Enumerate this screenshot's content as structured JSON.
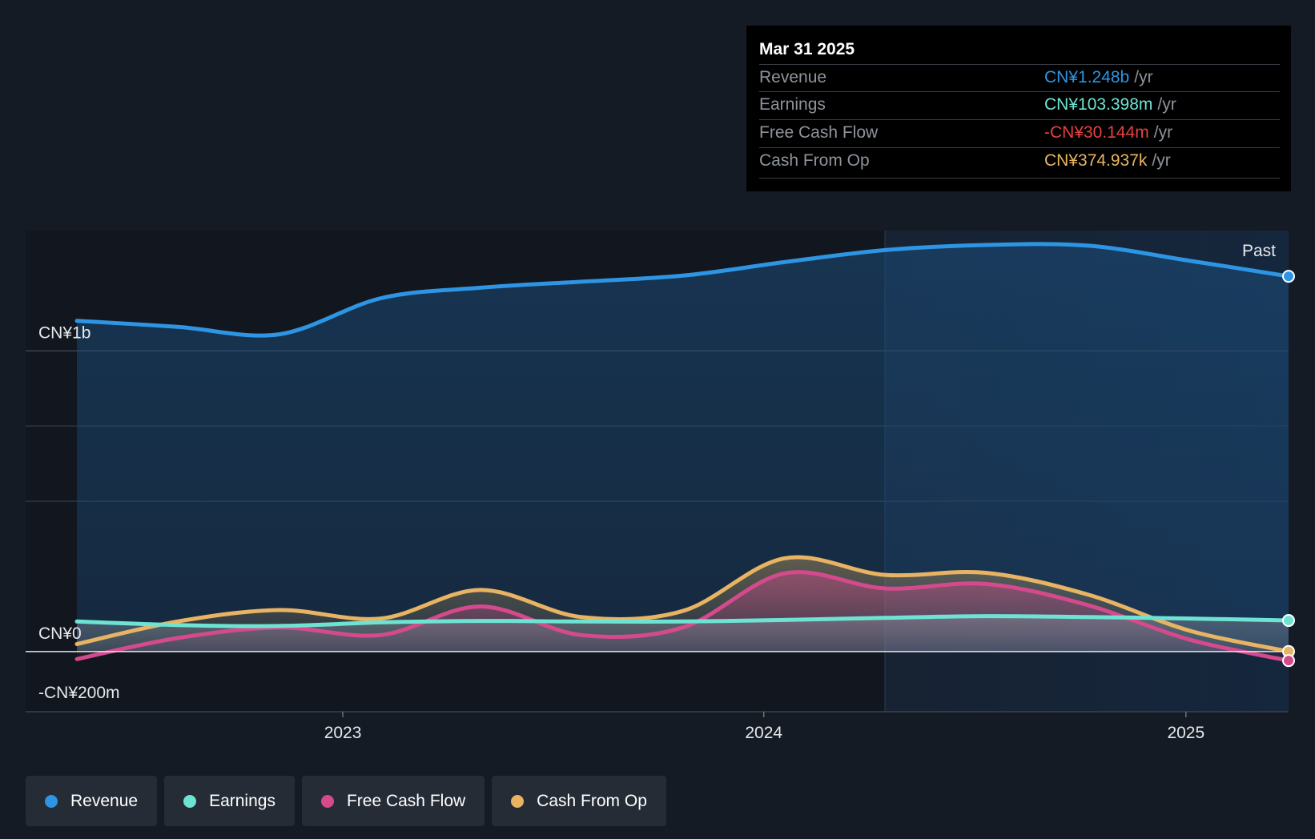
{
  "chart_data": {
    "type": "area",
    "y_axis": {
      "ticks": [
        {
          "value": 1000,
          "label": "CN¥1b"
        },
        {
          "value": 0,
          "label": "CN¥0"
        },
        {
          "value": -200,
          "label": "-CN¥200m"
        }
      ],
      "ylim": [
        -200,
        1400
      ],
      "unit": "CN¥ million"
    },
    "x_axis": {
      "xlim": [
        "2022-04-01",
        "2025-03-31"
      ],
      "ticks": [
        {
          "value": "2023-01-01",
          "label": "2023"
        },
        {
          "value": "2024-01-01",
          "label": "2024"
        },
        {
          "value": "2025-01-01",
          "label": "2025"
        }
      ]
    },
    "past_label": "Past",
    "past_start": "2024-03-31",
    "x": [
      "2022-03-31",
      "2022-06-30",
      "2022-09-30",
      "2022-12-31",
      "2023-03-31",
      "2023-06-30",
      "2023-09-30",
      "2023-12-31",
      "2024-03-31",
      "2024-06-30",
      "2024-09-30",
      "2024-12-31",
      "2025-03-31"
    ],
    "series": [
      {
        "name": "Revenue",
        "color": "#2d95e3",
        "values": [
          1100,
          1080,
          1055,
          1175,
          1210,
          1230,
          1250,
          1295,
          1335,
          1352,
          1350,
          1300,
          1248
        ]
      },
      {
        "name": "Earnings",
        "color": "#6ee3d3",
        "values": [
          100,
          88,
          85,
          97,
          102,
          100,
          100,
          105,
          112,
          118,
          115,
          110,
          103.4
        ]
      },
      {
        "name": "Free Cash Flow",
        "color": "#d44a8d",
        "values": [
          -25,
          45,
          80,
          55,
          150,
          55,
          80,
          260,
          210,
          225,
          155,
          40,
          -30.1
        ]
      },
      {
        "name": "Cash From Op",
        "color": "#e8b463",
        "values": [
          25,
          100,
          138,
          110,
          205,
          115,
          135,
          310,
          255,
          262,
          190,
          70,
          0.4
        ]
      }
    ]
  },
  "tooltip": {
    "date": "Mar 31 2025",
    "rows": [
      {
        "label": "Revenue",
        "value": "CN¥1.248b",
        "unit": "/yr",
        "color": "#2d95e3"
      },
      {
        "label": "Earnings",
        "value": "CN¥103.398m",
        "unit": "/yr",
        "color": "#6ee3d3"
      },
      {
        "label": "Free Cash Flow",
        "value": "-CN¥30.144m",
        "unit": "/yr",
        "color": "#e5413f"
      },
      {
        "label": "Cash From Op",
        "value": "CN¥374.937k",
        "unit": "/yr",
        "color": "#e8b463"
      }
    ]
  },
  "legend": [
    {
      "label": "Revenue",
      "color": "#2d95e3"
    },
    {
      "label": "Earnings",
      "color": "#6ee3d3"
    },
    {
      "label": "Free Cash Flow",
      "color": "#d44a8d"
    },
    {
      "label": "Cash From Op",
      "color": "#e8b463"
    }
  ]
}
